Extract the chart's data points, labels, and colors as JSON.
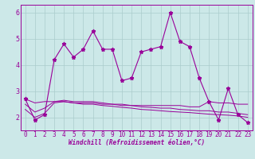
{
  "title": "",
  "xlabel": "Windchill (Refroidissement éolien,°C)",
  "ylabel": "",
  "bg_color": "#cce8e8",
  "line_color": "#990099",
  "grid_color": "#aacccc",
  "x_values": [
    0,
    1,
    2,
    3,
    4,
    5,
    6,
    7,
    8,
    9,
    10,
    11,
    12,
    13,
    14,
    15,
    16,
    17,
    18,
    19,
    20,
    21,
    22,
    23
  ],
  "y_main": [
    2.7,
    1.9,
    2.1,
    4.2,
    4.8,
    4.3,
    4.6,
    5.3,
    4.6,
    4.6,
    3.4,
    3.5,
    4.5,
    4.6,
    4.7,
    6.0,
    4.9,
    4.7,
    3.5,
    2.6,
    1.9,
    3.1,
    2.1,
    1.8
  ],
  "y_trend1": [
    2.7,
    2.55,
    2.6,
    2.6,
    2.6,
    2.55,
    2.55,
    2.55,
    2.5,
    2.5,
    2.5,
    2.45,
    2.45,
    2.45,
    2.45,
    2.45,
    2.45,
    2.4,
    2.4,
    2.6,
    2.55,
    2.55,
    2.5,
    2.5
  ],
  "y_trend2": [
    2.5,
    2.2,
    2.35,
    2.6,
    2.65,
    2.6,
    2.6,
    2.6,
    2.55,
    2.5,
    2.45,
    2.45,
    2.4,
    2.38,
    2.35,
    2.35,
    2.3,
    2.28,
    2.25,
    2.25,
    2.2,
    2.2,
    2.15,
    2.1
  ],
  "y_trend3": [
    2.3,
    2.0,
    2.15,
    2.55,
    2.6,
    2.55,
    2.5,
    2.5,
    2.45,
    2.42,
    2.38,
    2.35,
    2.3,
    2.28,
    2.25,
    2.22,
    2.2,
    2.18,
    2.15,
    2.12,
    2.1,
    2.08,
    2.05,
    2.0
  ],
  "ylim": [
    1.5,
    6.3
  ],
  "xlim": [
    -0.5,
    23.5
  ],
  "yticks": [
    2,
    3,
    4,
    5,
    6
  ],
  "tick_fontsize": 5.5,
  "xlabel_fontsize": 5.5
}
